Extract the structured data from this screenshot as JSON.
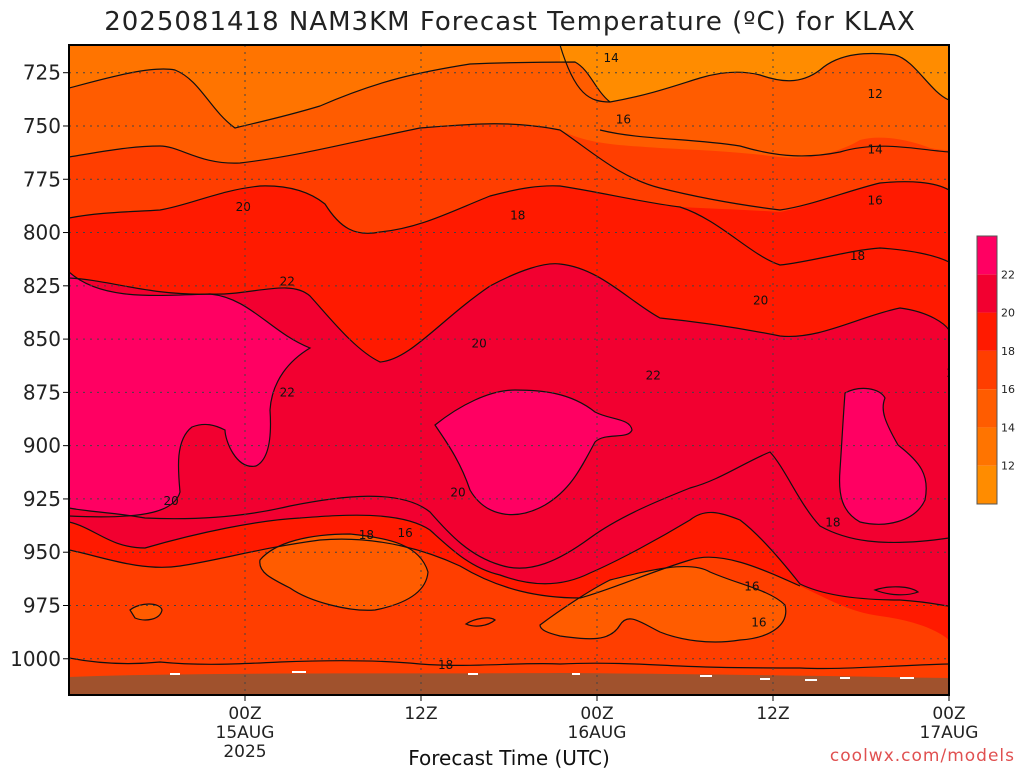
{
  "chart_data": {
    "type": "heatmap",
    "title": "2025081418 NAM3KM Forecast Temperature (ºC) for KLAX",
    "xlabel": "Forecast Time (UTC)",
    "ylabel": "",
    "credit": "coolwx.com/models",
    "y_axis": {
      "scale": "pressure (hPa), inverted",
      "range": [
        1017,
        712
      ],
      "ticks": [
        725,
        750,
        775,
        800,
        825,
        850,
        875,
        900,
        925,
        950,
        975,
        1000
      ]
    },
    "x_axis": {
      "range_hours": [
        -10,
        40
      ],
      "ticks": [
        {
          "hour": 0,
          "lines": [
            "00Z",
            "15AUG",
            "2025"
          ]
        },
        {
          "hour": 10,
          "lines": [
            "12Z"
          ]
        },
        {
          "hour": 20,
          "lines": [
            "00Z",
            "16AUG"
          ]
        },
        {
          "hour": 30,
          "lines": [
            "12Z"
          ]
        },
        {
          "hour": 40,
          "lines": [
            "00Z",
            "17AUG"
          ]
        }
      ]
    },
    "colorbar": {
      "levels": [
        10,
        12,
        14,
        16,
        18,
        20,
        22,
        24
      ],
      "colors": [
        "#ff8c00",
        "#ff7400",
        "#ff5c00",
        "#ff3e00",
        "#ff1a00",
        "#f20030",
        "#ff0062"
      ],
      "tick_labels": [
        "12",
        "14",
        "16",
        "18",
        "20",
        "22"
      ]
    },
    "contour_levels": [
      12,
      14,
      16,
      18,
      20,
      22
    ],
    "contour_labels": [
      {
        "text": "14",
        "hour": 20.8,
        "p": 718
      },
      {
        "text": "12",
        "hour": 35.8,
        "p": 735
      },
      {
        "text": "16",
        "hour": 21.5,
        "p": 747
      },
      {
        "text": "14",
        "hour": 35.8,
        "p": 761
      },
      {
        "text": "16",
        "hour": 35.8,
        "p": 785
      },
      {
        "text": "18",
        "hour": 15.5,
        "p": 792
      },
      {
        "text": "20",
        "hour": -0.1,
        "p": 788
      },
      {
        "text": "18",
        "hour": 34.8,
        "p": 811
      },
      {
        "text": "22",
        "hour": 2.4,
        "p": 823
      },
      {
        "text": "20",
        "hour": 29.3,
        "p": 832
      },
      {
        "text": "20",
        "hour": 13.3,
        "p": 852
      },
      {
        "text": "22",
        "hour": 2.4,
        "p": 875
      },
      {
        "text": "22",
        "hour": 23.2,
        "p": 867
      },
      {
        "text": "22",
        "hour": 40.3,
        "p": 866
      },
      {
        "text": "20",
        "hour": 12.1,
        "p": 922
      },
      {
        "text": "20",
        "hour": -4.2,
        "p": 926
      },
      {
        "text": "18",
        "hour": 6.9,
        "p": 942
      },
      {
        "text": "16",
        "hour": 9.1,
        "p": 941
      },
      {
        "text": "18",
        "hour": 33.4,
        "p": 936
      },
      {
        "text": "16",
        "hour": 28.8,
        "p": 966
      },
      {
        "text": "16",
        "hour": 29.2,
        "p": 983
      },
      {
        "text": "18",
        "hour": 11.4,
        "p": 1003
      }
    ],
    "grid": "dotted",
    "legend": "right (colorbar)",
    "terrain_color": "#a0522d"
  }
}
